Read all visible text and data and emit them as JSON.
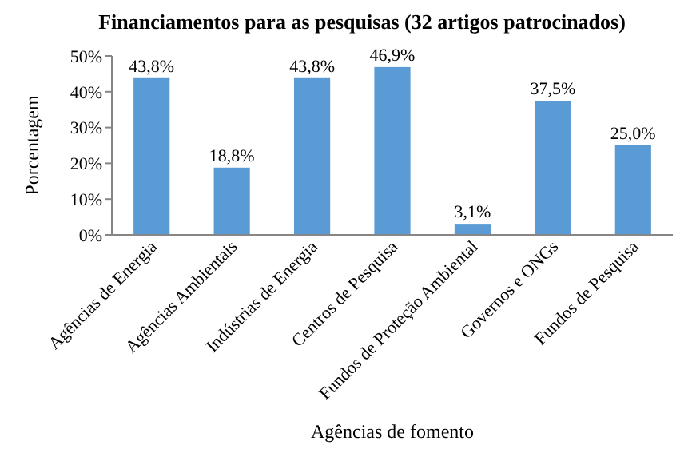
{
  "chart_data": {
    "type": "bar",
    "title": "Financiamentos para as pesquisas (32 artigos patrocinados)",
    "xlabel": "Agências de fomento",
    "ylabel": "Porcentagem",
    "categories": [
      "Agências de Energia",
      "Agências Ambientais",
      "Indústrias de Energia",
      "Centros de Pesquisa",
      "Fundos de Proteção Ambiental",
      "Governos e ONGs",
      "Fundos de Pesquisa"
    ],
    "values": [
      43.8,
      18.8,
      43.8,
      46.9,
      3.1,
      37.5,
      25.0
    ],
    "value_labels": [
      "43,8%",
      "18,8%",
      "43,8%",
      "46,9%",
      "3,1%",
      "37,5%",
      "25,0%"
    ],
    "color": "#5b9bd5",
    "ylim": [
      0,
      50
    ],
    "yticks": [
      {
        "value": 0,
        "label": "0%"
      },
      {
        "value": 10,
        "label": "10%"
      },
      {
        "value": 20,
        "label": "20%"
      },
      {
        "value": 30,
        "label": "30%"
      },
      {
        "value": 40,
        "label": "40%"
      },
      {
        "value": 50,
        "label": "50%"
      }
    ]
  }
}
